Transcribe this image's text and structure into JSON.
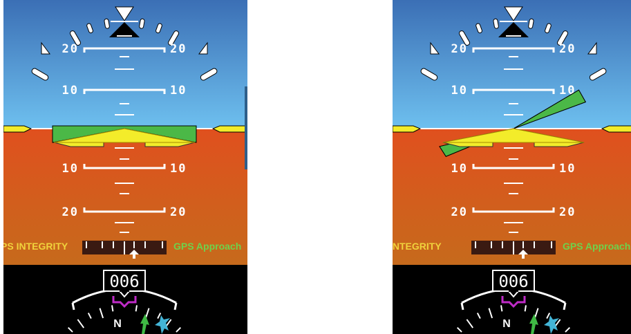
{
  "panels": [
    {
      "id": "left",
      "offset_x": 5,
      "pitch_labels": {
        "up_20": "20",
        "up_10": "10",
        "down_10": "10",
        "down_20": "20"
      },
      "status": {
        "integrity": "PS INTEGRITY",
        "approach": "GPS Approach",
        "integrity_color": "#f0d23c",
        "approach_color": "#6ed24c"
      },
      "heading": "006",
      "compass_letter": "N",
      "flight_director_bank_deg": 0
    },
    {
      "id": "right",
      "offset_x": 568,
      "pitch_labels": {
        "up_20": "20",
        "up_10": "10",
        "down_10": "10",
        "down_20": "20"
      },
      "status": {
        "integrity": "INTEGRITY",
        "approach": "GPS Approach",
        "integrity_color": "#f0d23c",
        "approach_color": "#6ed24c"
      },
      "heading": "006",
      "compass_letter": "N",
      "flight_director_bank_deg": -12
    }
  ],
  "colors": {
    "sky_top": "#3b6fb5",
    "sky_bottom": "#6ec0ef",
    "ground_top": "#e0501e",
    "ground_bottom": "#c66a1c",
    "flight_director": "#4bb847",
    "aircraft_symbol": "#f3ec2a",
    "heading_background": "#000000"
  },
  "icons": {
    "roll_pointer": "triangle-icon",
    "approach_arrow": "arrow-up-icon",
    "heading_bug": "magenta-bug-icon",
    "course_pointer": "green-arrow-icon",
    "traffic": "plane-icon"
  }
}
